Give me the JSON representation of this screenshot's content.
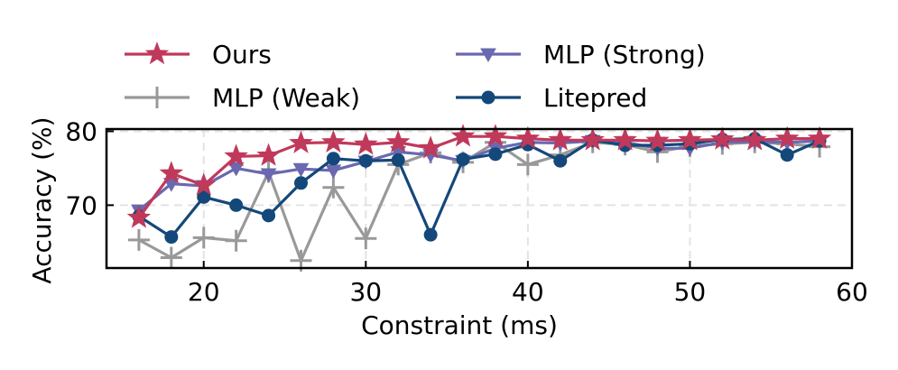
{
  "chart_data": {
    "type": "line",
    "title": "",
    "xlabel": "Constraint (ms)",
    "ylabel": "Accuracy (%)",
    "xlim": [
      14,
      60
    ],
    "ylim": [
      61.5,
      80.3
    ],
    "xticks": [
      20,
      30,
      40,
      50,
      60
    ],
    "yticks": [
      70,
      80
    ],
    "grid": true,
    "legend_position": "top",
    "x": [
      16,
      18,
      20,
      22,
      24,
      26,
      28,
      30,
      32,
      34,
      36,
      38,
      40,
      42,
      44,
      46,
      48,
      50,
      52,
      54,
      56,
      58
    ],
    "series": [
      {
        "name": "Ours",
        "color": "#c0395b",
        "marker": "star",
        "values": [
          68.3,
          74.3,
          72.7,
          76.6,
          76.7,
          78.4,
          78.5,
          78.2,
          78.5,
          77.7,
          79.3,
          79.3,
          79.0,
          78.8,
          78.8,
          78.8,
          78.7,
          78.8,
          78.9,
          78.8,
          79.0,
          79.0
        ]
      },
      {
        "name": "MLP (Weak)",
        "color": "#999999",
        "marker": "plus",
        "values": [
          65.3,
          62.9,
          65.6,
          65.2,
          74.5,
          62.5,
          72.4,
          65.5,
          75.5,
          77.1,
          75.8,
          78.5,
          75.5,
          76.8,
          78.5,
          78.2,
          77.2,
          78.0,
          78.3,
          78.5,
          78.3,
          77.9
        ]
      },
      {
        "name": "MLP (Strong)",
        "color": "#6a68b0",
        "marker": "triangle-down",
        "values": [
          69.3,
          72.9,
          72.6,
          75.0,
          74.2,
          74.9,
          74.7,
          75.9,
          77.2,
          76.8,
          76.0,
          77.7,
          78.5,
          78.4,
          78.7,
          78.5,
          77.7,
          77.7,
          78.5,
          78.6,
          78.5,
          78.7
        ]
      },
      {
        "name": "Litepred",
        "color": "#14487a",
        "marker": "circle",
        "values": [
          68.5,
          65.7,
          71.1,
          70.0,
          68.6,
          73.0,
          76.3,
          76.0,
          76.1,
          66.0,
          76.2,
          76.9,
          78.2,
          76.0,
          78.8,
          78.1,
          78.1,
          78.3,
          78.9,
          79.0,
          76.8,
          78.7
        ]
      }
    ]
  }
}
